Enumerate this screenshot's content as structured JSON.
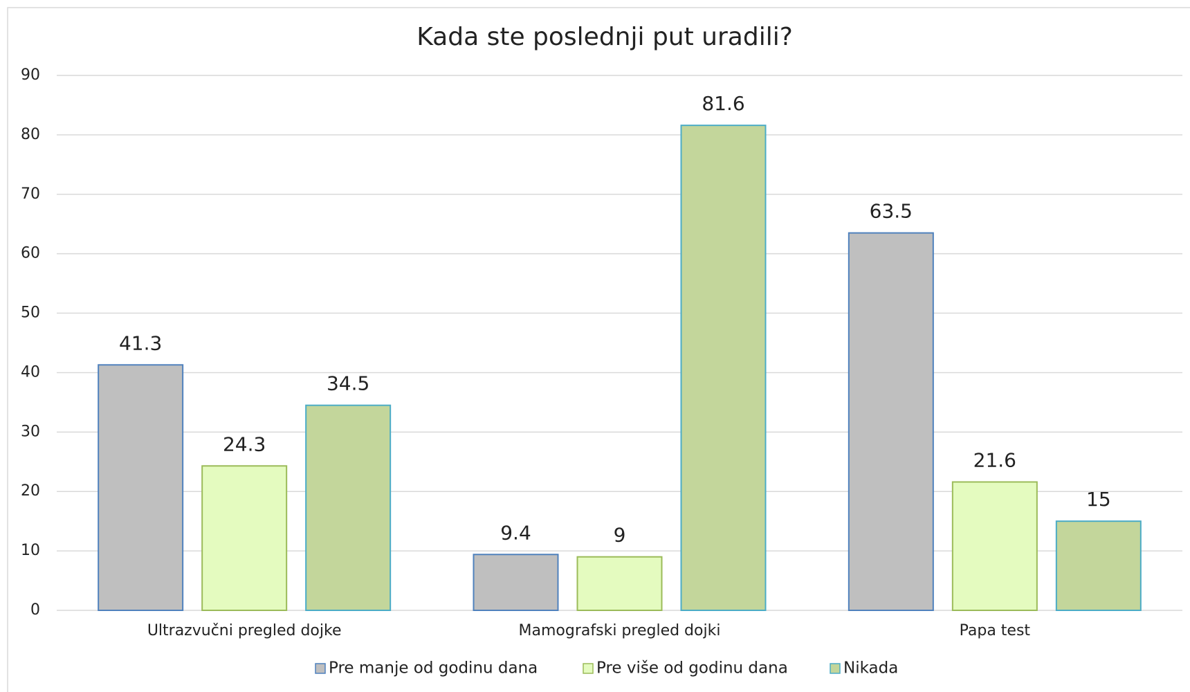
{
  "chart_data": {
    "type": "bar",
    "title": "Kada ste poslednji put uradili?",
    "categories": [
      "Ultrazvučni pregled dojke",
      "Mamografski pregled dojki",
      "Papa test"
    ],
    "series": [
      {
        "name": "Pre manje od godinu dana",
        "color": "#bfbfbf",
        "values": [
          41.3,
          9.4,
          63.5
        ]
      },
      {
        "name": "Pre više od godinu dana",
        "color": "#e4fbbf",
        "values": [
          24.3,
          9,
          21.6
        ]
      },
      {
        "name": "Nikada",
        "color": "#c3d69b",
        "values": [
          34.5,
          81.6,
          15
        ]
      }
    ],
    "ylim": [
      0,
      90
    ],
    "yticks": [
      0,
      10,
      20,
      30,
      40,
      50,
      60,
      70,
      80,
      90
    ],
    "grid": true,
    "legend": "bottom"
  }
}
